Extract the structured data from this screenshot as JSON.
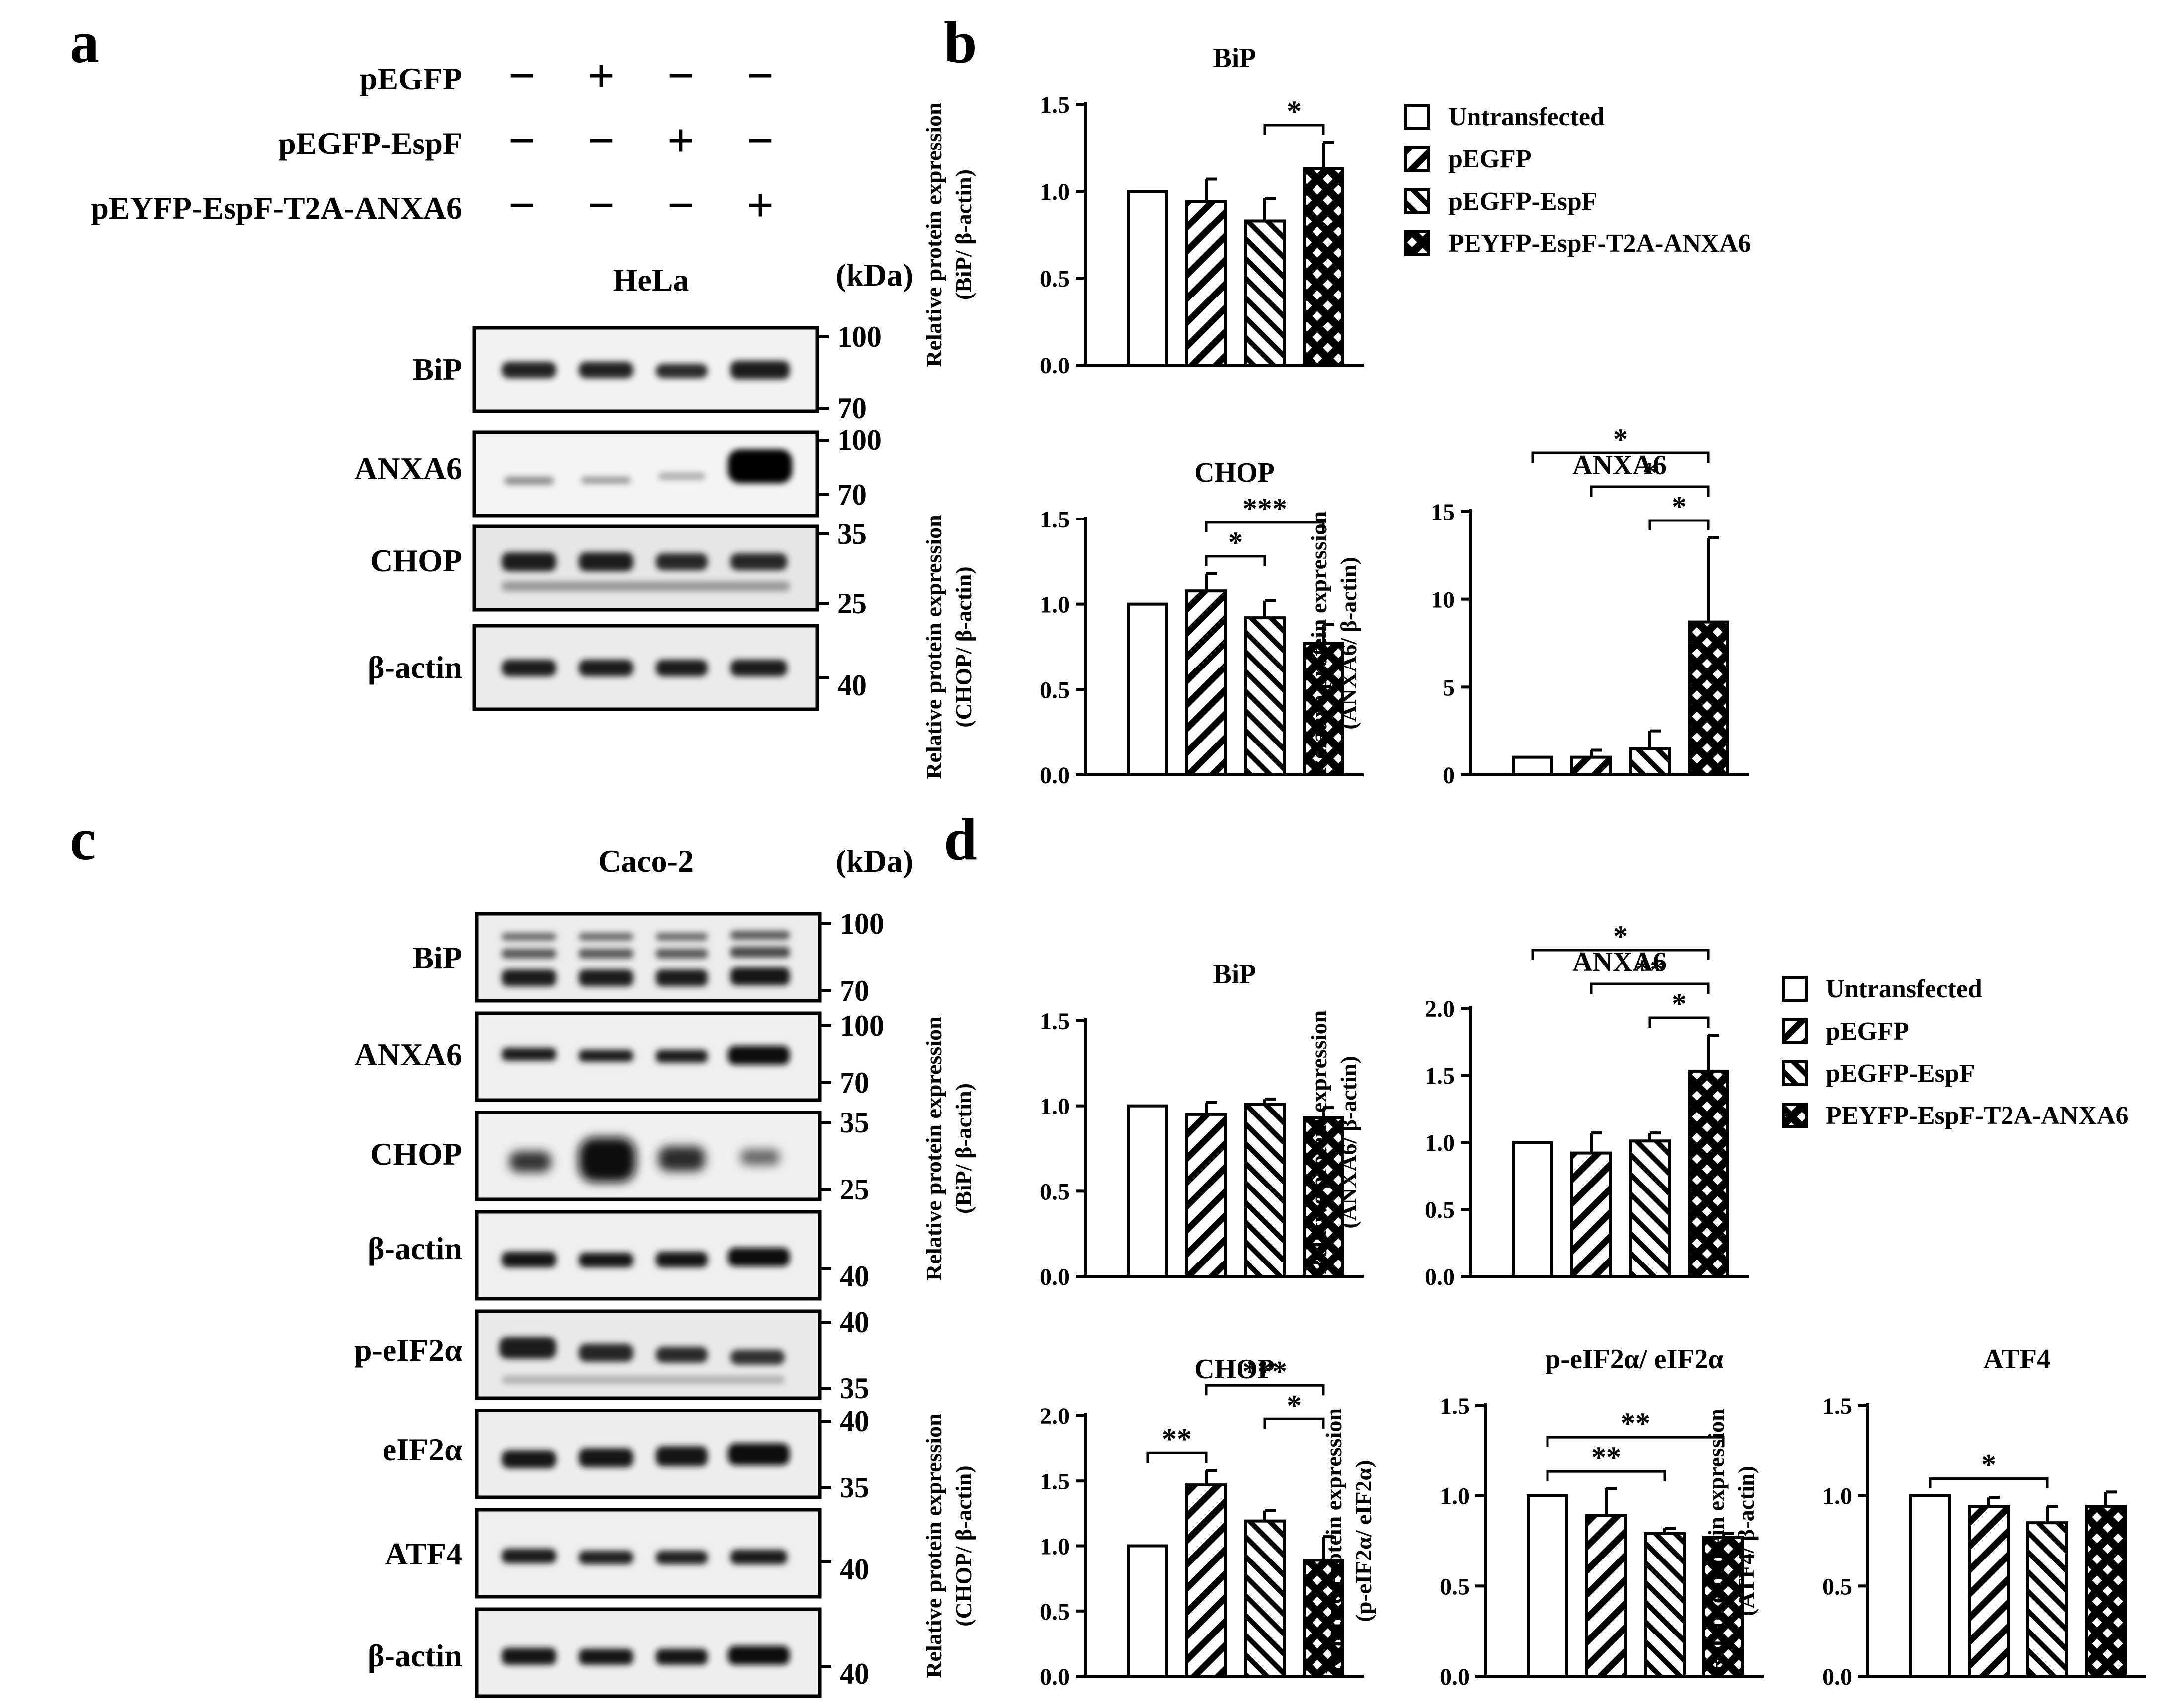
{
  "panel_letters": [
    "a",
    "b",
    "c",
    "d"
  ],
  "conditions": {
    "labels": [
      "pEGFP",
      "pEGFP-EspF",
      "pEYFP-EspF-T2A-ANXA6"
    ],
    "signs": [
      [
        "−",
        "+",
        "−",
        "−"
      ],
      [
        "−",
        "−",
        "+",
        "−"
      ],
      [
        "−",
        "−",
        "−",
        "+"
      ]
    ]
  },
  "legend": {
    "entries": [
      "Untransfected",
      "pEGFP",
      "pEGFP-EspF",
      "PEYFP-EspF-T2A-ANXA6"
    ],
    "patterns": [
      "open",
      "diag-right",
      "diag-left",
      "crosshatch"
    ]
  },
  "blot_a": {
    "cell": "HeLa",
    "unit": "(kDa)",
    "bands": [
      {
        "label": "BiP",
        "markers": [
          "100",
          "70"
        ]
      },
      {
        "label": "ANXA6",
        "markers": [
          "100",
          "70"
        ]
      },
      {
        "label": "CHOP",
        "markers": [
          "35",
          "25"
        ]
      },
      {
        "label": "β-actin",
        "markers": [
          "40"
        ]
      }
    ]
  },
  "blot_c": {
    "cell": "Caco-2",
    "unit": "(kDa)",
    "bands": [
      {
        "label": "BiP",
        "markers": [
          "100",
          "70"
        ]
      },
      {
        "label": "ANXA6",
        "markers": [
          "100",
          "70"
        ]
      },
      {
        "label": "CHOP",
        "markers": [
          "35",
          "25"
        ]
      },
      {
        "label": "β-actin",
        "markers": [
          "40"
        ]
      },
      {
        "label": "p-eIF2α",
        "markers": [
          "40",
          "35"
        ]
      },
      {
        "label": "eIF2α",
        "markers": [
          "40",
          "35"
        ]
      },
      {
        "label": "ATF4",
        "markers": [
          "40"
        ]
      },
      {
        "label": "β-actin",
        "markers": [
          "40"
        ]
      }
    ]
  },
  "chart_data": [
    {
      "type": "bar",
      "panel": "b",
      "title": "BiP",
      "ylabel_line1": "Relative protein expression",
      "ylabel_line2": "(BiP/ β-actin)",
      "ylim": [
        0,
        1.5
      ],
      "yticks": [
        "0.0",
        "0.5",
        "1.0",
        "1.5"
      ],
      "categories": [
        "Untransfected",
        "pEGFP",
        "pEGFP-EspF",
        "PEYFP-EspF-T2A-ANXA6"
      ],
      "values": [
        1.0,
        0.94,
        0.83,
        1.13
      ],
      "errors": [
        0,
        0.13,
        0.13,
        0.15
      ],
      "significance": [
        {
          "from": 2,
          "to": 3,
          "label": "*"
        }
      ]
    },
    {
      "type": "bar",
      "panel": "b",
      "title": "CHOP",
      "ylabel_line1": "Relative protein expression",
      "ylabel_line2": "(CHOP/ β-actin)",
      "ylim": [
        0,
        1.5
      ],
      "yticks": [
        "0.0",
        "0.5",
        "1.0",
        "1.5"
      ],
      "categories": [
        "Untransfected",
        "pEGFP",
        "pEGFP-EspF",
        "PEYFP-EspF-T2A-ANXA6"
      ],
      "values": [
        1.0,
        1.08,
        0.92,
        0.77
      ],
      "errors": [
        0,
        0.1,
        0.1,
        0.11
      ],
      "significance": [
        {
          "from": 1,
          "to": 2,
          "label": "*"
        },
        {
          "from": 1,
          "to": 3,
          "label": "***"
        }
      ]
    },
    {
      "type": "bar",
      "panel": "b",
      "title": "ANXA6",
      "ylabel_line1": "Relative protein expression",
      "ylabel_line2": "(ANXA6/ β-actin)",
      "ylim": [
        0,
        15
      ],
      "yticks": [
        "0",
        "5",
        "10",
        "15"
      ],
      "categories": [
        "Untransfected",
        "pEGFP",
        "pEGFP-EspF",
        "PEYFP-EspF-T2A-ANXA6"
      ],
      "values": [
        1.0,
        1.0,
        1.5,
        8.7
      ],
      "errors": [
        0,
        0.4,
        1.0,
        4.8
      ],
      "significance": [
        {
          "from": 2,
          "to": 3,
          "label": "*"
        },
        {
          "from": 1,
          "to": 3,
          "label": "*"
        },
        {
          "from": 0,
          "to": 3,
          "label": "*"
        }
      ]
    },
    {
      "type": "bar",
      "panel": "d",
      "title": "BiP",
      "ylabel_line1": "Relative protein expression",
      "ylabel_line2": "(BiP/ β-actin)",
      "ylim": [
        0,
        1.5
      ],
      "yticks": [
        "0.0",
        "0.5",
        "1.0",
        "1.5"
      ],
      "categories": [
        "Untransfected",
        "pEGFP",
        "pEGFP-EspF",
        "PEYFP-EspF-T2A-ANXA6"
      ],
      "values": [
        1.0,
        0.95,
        1.01,
        0.93
      ],
      "errors": [
        0,
        0.07,
        0.03,
        0.06
      ],
      "significance": []
    },
    {
      "type": "bar",
      "panel": "d",
      "title": "ANXA6",
      "ylabel_line1": "Relative protein expression",
      "ylabel_line2": "(ANXA6/ β-actin)",
      "ylim": [
        0,
        2.0
      ],
      "yticks": [
        "0.0",
        "0.5",
        "1.0",
        "1.5",
        "2.0"
      ],
      "categories": [
        "Untransfected",
        "pEGFP",
        "pEGFP-EspF",
        "PEYFP-EspF-T2A-ANXA6"
      ],
      "values": [
        1.0,
        0.92,
        1.01,
        1.53
      ],
      "errors": [
        0,
        0.15,
        0.06,
        0.27
      ],
      "significance": [
        {
          "from": 2,
          "to": 3,
          "label": "*"
        },
        {
          "from": 1,
          "to": 3,
          "label": "**"
        },
        {
          "from": 0,
          "to": 3,
          "label": "*"
        }
      ]
    },
    {
      "type": "bar",
      "panel": "d",
      "title": "CHOP",
      "ylabel_line1": "Relative protein expression",
      "ylabel_line2": "(CHOP/ β-actin)",
      "ylim": [
        0,
        2.0
      ],
      "yticks": [
        "0.0",
        "0.5",
        "1.0",
        "1.5",
        "2.0"
      ],
      "categories": [
        "Untransfected",
        "pEGFP",
        "pEGFP-EspF",
        "PEYFP-EspF-T2A-ANXA6"
      ],
      "values": [
        1.0,
        1.47,
        1.19,
        0.89
      ],
      "errors": [
        0,
        0.11,
        0.08,
        0.18
      ],
      "significance": [
        {
          "from": 0,
          "to": 1,
          "label": "**"
        },
        {
          "from": 1,
          "to": 3,
          "label": "***"
        },
        {
          "from": 2,
          "to": 3,
          "label": "*"
        }
      ]
    },
    {
      "type": "bar",
      "panel": "d",
      "title": "p-eIF2α/ eIF2α",
      "ylabel_line1": "Relative Protein expression",
      "ylabel_line2": "(p-eIF2α/ eIF2α)",
      "ylim": [
        0,
        1.5
      ],
      "yticks": [
        "0.0",
        "0.5",
        "1.0",
        "1.5"
      ],
      "categories": [
        "Untransfected",
        "pEGFP",
        "pEGFP-EspF",
        "PEYFP-EspF-T2A-ANXA6"
      ],
      "values": [
        1.0,
        0.89,
        0.79,
        0.77
      ],
      "errors": [
        0,
        0.15,
        0.03,
        0.02
      ],
      "significance": [
        {
          "from": 0,
          "to": 2,
          "label": "**"
        },
        {
          "from": 0,
          "to": 3,
          "label": "**"
        }
      ]
    },
    {
      "type": "bar",
      "panel": "d",
      "title": "ATF4",
      "ylabel_line1": "Relative protein expression",
      "ylabel_line2": "(ATF4/ β-actin)",
      "ylim": [
        0,
        1.5
      ],
      "yticks": [
        "0.0",
        "0.5",
        "1.0",
        "1.5"
      ],
      "categories": [
        "Untransfected",
        "pEGFP",
        "pEGFP-EspF",
        "PEYFP-EspF-T2A-ANXA6"
      ],
      "values": [
        1.0,
        0.94,
        0.85,
        0.94
      ],
      "errors": [
        0,
        0.05,
        0.09,
        0.08
      ],
      "significance": [
        {
          "from": 0,
          "to": 2,
          "label": "*"
        }
      ]
    }
  ]
}
